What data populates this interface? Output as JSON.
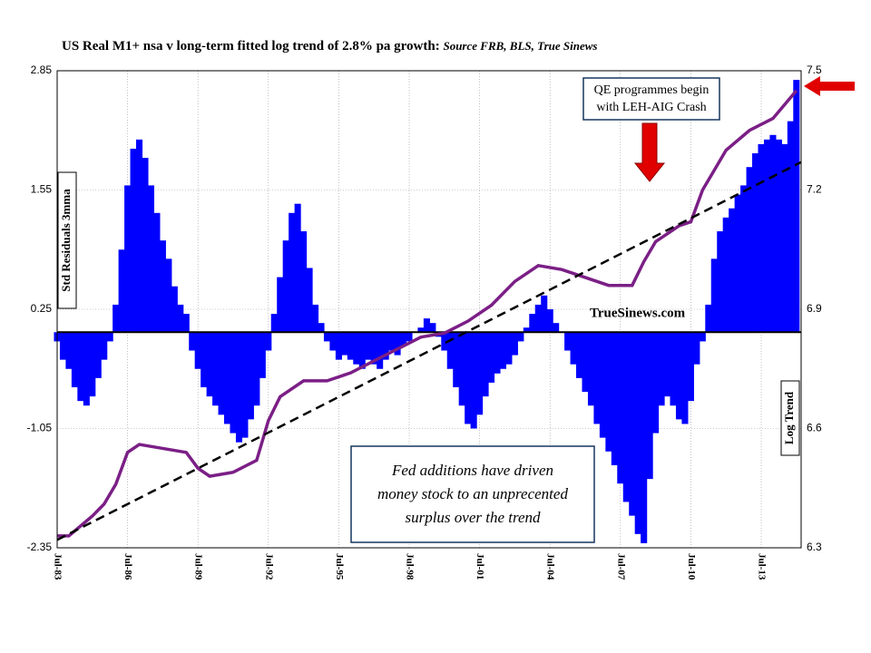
{
  "chart_data": {
    "type": "bar_line",
    "title": "US Real M1+ nsa v long-term fitted log trend of 2.8% pa growth:",
    "subtitle": "Source FRB, BLS, True Sinews",
    "ylabel": "Std Residuals 3mma",
    "y2label": "Log Trend",
    "xlim": [
      1983.5,
      2015.2
    ],
    "xticks": [
      {
        "value": 1983.5,
        "label": "Jul-83"
      },
      {
        "value": 1986.5,
        "label": "Jul-86"
      },
      {
        "value": 1989.5,
        "label": "Jul-89"
      },
      {
        "value": 1992.5,
        "label": "Jul-92"
      },
      {
        "value": 1995.5,
        "label": "Jul-95"
      },
      {
        "value": 1998.5,
        "label": "Jul-98"
      },
      {
        "value": 2001.5,
        "label": "Jul-01"
      },
      {
        "value": 2004.5,
        "label": "Jul-04"
      },
      {
        "value": 2007.5,
        "label": "Jul-07"
      },
      {
        "value": 2010.5,
        "label": "Jul-10"
      },
      {
        "value": 2013.5,
        "label": "Jul-13"
      }
    ],
    "ylim": [
      -2.35,
      2.85
    ],
    "yticks": [
      -2.35,
      -1.05,
      0.25,
      1.55,
      2.85
    ],
    "negative_tick_color": "#c00000",
    "y2lim": [
      6.3,
      7.5
    ],
    "y2ticks": [
      6.3,
      6.6,
      6.9,
      7.2,
      7.5
    ],
    "grid": true,
    "series": [
      {
        "name": "Std Residuals 3mma",
        "kind": "bar",
        "color": "#0000ff",
        "x": [
          1983.5,
          1983.75,
          1984,
          1984.25,
          1984.5,
          1984.75,
          1985,
          1985.25,
          1985.5,
          1985.75,
          1986,
          1986.25,
          1986.5,
          1986.75,
          1987,
          1987.25,
          1987.5,
          1987.75,
          1988,
          1988.25,
          1988.5,
          1988.75,
          1989,
          1989.25,
          1989.5,
          1989.75,
          1990,
          1990.25,
          1990.5,
          1990.75,
          1991,
          1991.25,
          1991.5,
          1991.75,
          1992,
          1992.25,
          1992.5,
          1992.75,
          1993,
          1993.25,
          1993.5,
          1993.75,
          1994,
          1994.25,
          1994.5,
          1994.75,
          1995,
          1995.25,
          1995.5,
          1995.75,
          1996,
          1996.25,
          1996.5,
          1996.75,
          1997,
          1997.25,
          1997.5,
          1997.75,
          1998,
          1998.25,
          1998.5,
          1998.75,
          1999,
          1999.25,
          1999.5,
          1999.75,
          2000,
          2000.25,
          2000.5,
          2000.75,
          2001,
          2001.25,
          2001.5,
          2001.75,
          2002,
          2002.25,
          2002.5,
          2002.75,
          2003,
          2003.25,
          2003.5,
          2003.75,
          2004,
          2004.25,
          2004.5,
          2004.75,
          2005,
          2005.25,
          2005.5,
          2005.75,
          2006,
          2006.25,
          2006.5,
          2006.75,
          2007,
          2007.25,
          2007.5,
          2007.75,
          2008,
          2008.25,
          2008.5,
          2008.75,
          2009,
          2009.25,
          2009.5,
          2009.75,
          2010,
          2010.25,
          2010.5,
          2010.75,
          2011,
          2011.25,
          2011.5,
          2011.75,
          2012,
          2012.25,
          2012.5,
          2012.75,
          2013,
          2013.25,
          2013.5,
          2013.75,
          2014,
          2014.25,
          2014.5,
          2014.75,
          2015
        ],
        "values": [
          -0.1,
          -0.3,
          -0.4,
          -0.6,
          -0.75,
          -0.8,
          -0.7,
          -0.5,
          -0.3,
          -0.1,
          0.3,
          0.9,
          1.6,
          2.0,
          2.1,
          1.9,
          1.6,
          1.3,
          1.0,
          0.8,
          0.5,
          0.3,
          0.2,
          -0.2,
          -0.4,
          -0.6,
          -0.7,
          -0.8,
          -0.9,
          -1.0,
          -1.1,
          -1.2,
          -1.15,
          -0.95,
          -0.8,
          -0.5,
          -0.2,
          0.2,
          0.6,
          1.0,
          1.3,
          1.4,
          1.1,
          0.7,
          0.3,
          0.1,
          -0.1,
          -0.2,
          -0.3,
          -0.25,
          -0.3,
          -0.35,
          -0.4,
          -0.3,
          -0.35,
          -0.4,
          -0.3,
          -0.2,
          -0.25,
          -0.15,
          -0.1,
          0.0,
          0.05,
          0.15,
          0.1,
          -0.05,
          -0.2,
          -0.4,
          -0.6,
          -0.8,
          -1.0,
          -1.05,
          -0.9,
          -0.7,
          -0.55,
          -0.45,
          -0.4,
          -0.35,
          -0.25,
          -0.1,
          0.05,
          0.2,
          0.3,
          0.4,
          0.25,
          0.1,
          0.0,
          -0.2,
          -0.35,
          -0.5,
          -0.65,
          -0.8,
          -1.0,
          -1.15,
          -1.3,
          -1.45,
          -1.65,
          -1.85,
          -2.0,
          -2.2,
          -2.3,
          -1.6,
          -1.1,
          -0.8,
          -0.7,
          -0.8,
          -0.95,
          -1.0,
          -0.75,
          -0.35,
          -0.1,
          0.3,
          0.8,
          1.1,
          1.25,
          1.35,
          1.5,
          1.6,
          1.8,
          1.95,
          2.05,
          2.1,
          2.15,
          2.1,
          2.05,
          2.3,
          2.75
        ]
      },
      {
        "name": "Real M1+ log",
        "kind": "line",
        "axis": "y2",
        "color": "#7b1f86",
        "x": [
          1983.5,
          1984,
          1985,
          1985.5,
          1986,
          1986.5,
          1987,
          1988,
          1989,
          1989.5,
          1990,
          1991,
          1992,
          1992.5,
          1993,
          1994,
          1995,
          1996,
          1997,
          1998,
          1999,
          2000,
          2001,
          2002,
          2003,
          2004,
          2005,
          2006,
          2007,
          2008,
          2008.5,
          2009,
          2010,
          2010.5,
          2011,
          2011.5,
          2012,
          2013,
          2014,
          2015
        ],
        "values": [
          6.33,
          6.33,
          6.38,
          6.41,
          6.46,
          6.54,
          6.56,
          6.55,
          6.54,
          6.5,
          6.48,
          6.49,
          6.52,
          6.62,
          6.68,
          6.72,
          6.72,
          6.74,
          6.77,
          6.8,
          6.83,
          6.84,
          6.87,
          6.91,
          6.97,
          7.01,
          7.0,
          6.98,
          6.96,
          6.96,
          7.02,
          7.07,
          7.11,
          7.12,
          7.2,
          7.25,
          7.3,
          7.35,
          7.38,
          7.45
        ]
      },
      {
        "name": "Fitted log trend",
        "kind": "dashed",
        "axis": "y2",
        "color": "#000000",
        "x": [
          1983.5,
          2015.2
        ],
        "values": [
          6.32,
          7.27
        ]
      }
    ],
    "annotations": {
      "qe": [
        "QE programmes begin",
        "with LEH-AIG Crash"
      ],
      "site": "TrueSinews.com",
      "fed": [
        "Fed additions have driven",
        "money stock to an unprecented",
        "surplus over the trend"
      ]
    }
  }
}
